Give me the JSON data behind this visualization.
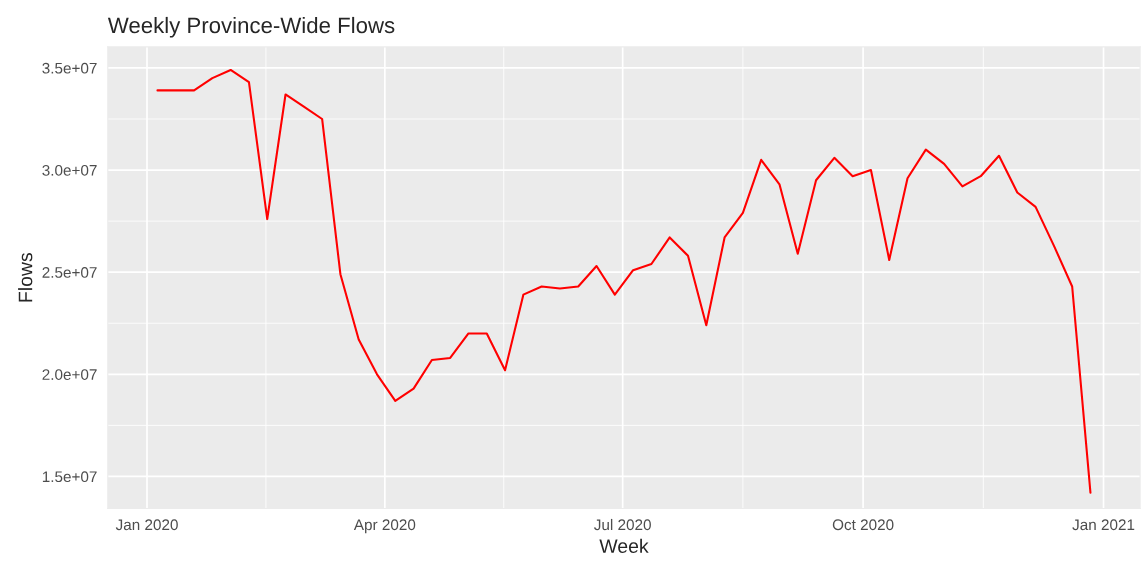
{
  "chart_data": {
    "type": "line",
    "title": "Weekly Province-Wide Flows",
    "xlabel": "Week",
    "ylabel": "Flows",
    "x": [
      "2020-01-05",
      "2020-01-12",
      "2020-01-19",
      "2020-01-26",
      "2020-02-02",
      "2020-02-09",
      "2020-02-16",
      "2020-02-23",
      "2020-03-01",
      "2020-03-08",
      "2020-03-15",
      "2020-03-22",
      "2020-03-29",
      "2020-04-05",
      "2020-04-12",
      "2020-04-19",
      "2020-04-26",
      "2020-05-03",
      "2020-05-10",
      "2020-05-17",
      "2020-05-24",
      "2020-05-31",
      "2020-06-07",
      "2020-06-14",
      "2020-06-21",
      "2020-06-28",
      "2020-07-05",
      "2020-07-12",
      "2020-07-19",
      "2020-07-26",
      "2020-08-02",
      "2020-08-09",
      "2020-08-16",
      "2020-08-23",
      "2020-08-30",
      "2020-09-06",
      "2020-09-13",
      "2020-09-20",
      "2020-09-27",
      "2020-10-04",
      "2020-10-11",
      "2020-10-18",
      "2020-10-25",
      "2020-11-01",
      "2020-11-08",
      "2020-11-15",
      "2020-11-22",
      "2020-11-29",
      "2020-12-06",
      "2020-12-13",
      "2020-12-20",
      "2020-12-27"
    ],
    "series": [
      {
        "color": "#ff0000",
        "values": [
          33900000,
          33900000,
          33900000,
          34500000,
          34900000,
          34300000,
          27600000,
          33700000,
          33100000,
          32500000,
          24900000,
          21700000,
          20000000,
          18700000,
          19300000,
          20700000,
          20800000,
          22000000,
          22000000,
          20200000,
          23900000,
          24300000,
          24200000,
          24300000,
          25300000,
          23900000,
          25100000,
          25400000,
          26700000,
          25800000,
          22400000,
          26700000,
          27900000,
          30500000,
          29300000,
          25900000,
          29500000,
          30600000,
          29700000,
          30000000,
          25600000,
          29600000,
          31000000,
          30300000,
          29200000,
          29700000,
          30700000,
          28900000,
          28200000,
          26300000,
          24300000,
          14200000
        ]
      }
    ],
    "xlim": [
      "2019-12-17",
      "2021-01-15"
    ],
    "xticks": [
      {
        "value": "2020-01-01",
        "label": "Jan 2020"
      },
      {
        "value": "2020-04-01",
        "label": "Apr 2020"
      },
      {
        "value": "2020-07-01",
        "label": "Jul 2020"
      },
      {
        "value": "2020-10-01",
        "label": "Oct 2020"
      },
      {
        "value": "2021-01-01",
        "label": "Jan 2021"
      }
    ],
    "ylim": [
      13430000,
      36030000
    ],
    "yticks": [
      {
        "value": 15000000,
        "label": "1.5e+07"
      },
      {
        "value": 20000000,
        "label": "2.0e+07"
      },
      {
        "value": 25000000,
        "label": "2.5e+07"
      },
      {
        "value": 30000000,
        "label": "3.0e+07"
      },
      {
        "value": 35000000,
        "label": "3.5e+07"
      }
    ],
    "grid": true,
    "line_style": "solid",
    "marker": "none"
  }
}
